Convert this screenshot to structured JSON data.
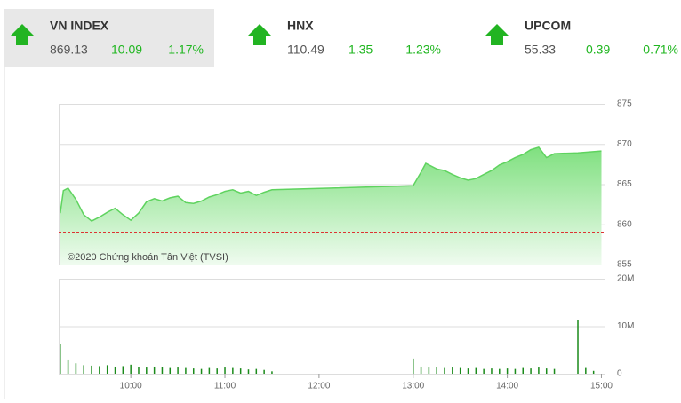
{
  "indices": [
    {
      "name": "VN INDEX",
      "value": "869.13",
      "change": "10.09",
      "percent": "1.17%"
    },
    {
      "name": "HNX",
      "value": "110.49",
      "change": "1.35",
      "percent": "1.23%"
    },
    {
      "name": "UPCOM",
      "value": "55.33",
      "change": "0.39",
      "percent": "0.71%"
    }
  ],
  "watermark": "©2020 Chứng khoán Tân Việt (TVSI)",
  "chart_data": [
    {
      "type": "area",
      "x": [
        555,
        557,
        560,
        565,
        570,
        575,
        580,
        585,
        590,
        595,
        600,
        605,
        610,
        615,
        620,
        625,
        630,
        635,
        640,
        645,
        650,
        655,
        660,
        665,
        670,
        675,
        680,
        685,
        690,
        780,
        785,
        788,
        790,
        795,
        800,
        805,
        810,
        815,
        820,
        825,
        830,
        835,
        840,
        845,
        850,
        855,
        860,
        865,
        870,
        885,
        900
      ],
      "series": [
        {
          "color": "#5fd35f",
          "values": [
            861.4,
            864.2,
            864.5,
            863.1,
            861.2,
            860.4,
            860.9,
            861.5,
            862.0,
            861.2,
            860.5,
            861.4,
            862.8,
            863.2,
            862.9,
            863.3,
            863.5,
            862.7,
            862.6,
            862.9,
            863.4,
            863.7,
            864.1,
            864.3,
            863.9,
            864.1,
            863.6,
            864.0,
            864.3,
            864.8,
            866.5,
            867.6,
            867.4,
            866.9,
            866.7,
            866.2,
            865.8,
            865.5,
            865.7,
            866.2,
            866.7,
            867.4,
            867.8,
            868.3,
            868.7,
            869.3,
            869.6,
            868.3,
            868.8,
            868.9,
            869.13
          ]
        }
      ],
      "reference_line": 859.04,
      "xlim": [
        554,
        902
      ],
      "ylim": [
        855,
        875
      ],
      "yticks": [
        855,
        860,
        865,
        870,
        875
      ],
      "grid": true
    },
    {
      "type": "bar",
      "x": [
        555,
        560,
        565,
        570,
        575,
        580,
        585,
        590,
        595,
        600,
        605,
        610,
        615,
        620,
        625,
        630,
        635,
        640,
        645,
        650,
        655,
        660,
        665,
        670,
        675,
        680,
        685,
        690,
        780,
        785,
        790,
        795,
        800,
        805,
        810,
        815,
        820,
        825,
        830,
        835,
        840,
        845,
        850,
        855,
        860,
        865,
        870,
        885,
        890,
        895
      ],
      "series": [
        {
          "color": "#1a8a1a",
          "values": [
            6200000,
            3000000,
            2200000,
            1800000,
            1700000,
            1600000,
            1800000,
            1500000,
            1600000,
            1900000,
            1400000,
            1300000,
            1500000,
            1400000,
            1200000,
            1300000,
            1200000,
            1100000,
            1000000,
            1200000,
            1100000,
            1300000,
            1200000,
            1100000,
            900000,
            1000000,
            800000,
            500000,
            3200000,
            1500000,
            1300000,
            1400000,
            1200000,
            1300000,
            1200000,
            1100000,
            1200000,
            1000000,
            1100000,
            1000000,
            1100000,
            1000000,
            1200000,
            1100000,
            1300000,
            1100000,
            1000000,
            11300000,
            1200000,
            600000
          ]
        }
      ],
      "xlim": [
        554,
        902
      ],
      "xticks": [
        {
          "value": 600,
          "label": "10:00"
        },
        {
          "value": 660,
          "label": "11:00"
        },
        {
          "value": 720,
          "label": "12:00"
        },
        {
          "value": 780,
          "label": "13:00"
        },
        {
          "value": 840,
          "label": "14:00"
        },
        {
          "value": 900,
          "label": "15:00"
        }
      ],
      "ylim": [
        0,
        20000000
      ],
      "yticks": [
        0,
        {
          "value": 10000000,
          "label": "10M"
        },
        {
          "value": 20000000,
          "label": "20M"
        }
      ],
      "grid": true
    }
  ]
}
